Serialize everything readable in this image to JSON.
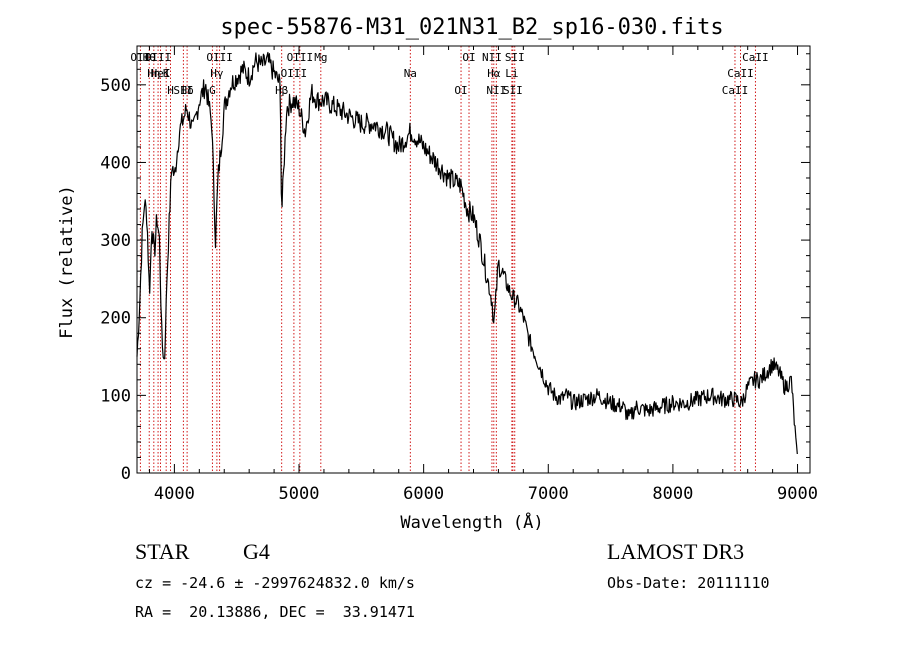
{
  "chart_data": {
    "type": "line",
    "title": "spec-55876-M31_021N31_B2_sp16-030.fits",
    "xlabel": "Wavelength (Å)",
    "ylabel": "Flux (relative)",
    "xlim": [
      3700,
      9100
    ],
    "ylim": [
      0,
      550
    ],
    "xticks": [
      4000,
      5000,
      6000,
      7000,
      8000,
      9000
    ],
    "yticks": [
      0,
      100,
      200,
      300,
      400,
      500
    ],
    "grid": false,
    "line_color": "#000000",
    "marker_color": "#cc0000",
    "series": [
      {
        "name": "flux",
        "x": [
          3700,
          3720,
          3740,
          3760,
          3780,
          3800,
          3820,
          3840,
          3860,
          3880,
          3900,
          3920,
          3940,
          3960,
          3980,
          4000,
          4040,
          4080,
          4100,
          4150,
          4200,
          4250,
          4300,
          4330,
          4350,
          4380,
          4400,
          4450,
          4500,
          4550,
          4600,
          4650,
          4700,
          4750,
          4800,
          4850,
          4860,
          4900,
          4950,
          5000,
          5050,
          5100,
          5150,
          5200,
          5300,
          5400,
          5500,
          5600,
          5700,
          5800,
          5900,
          6000,
          6100,
          6200,
          6300,
          6350,
          6400,
          6450,
          6500,
          6550,
          6563,
          6600,
          6650,
          6700,
          6750,
          6800,
          6850,
          6900,
          6950,
          7000,
          7050,
          7100,
          7150,
          7200,
          7300,
          7400,
          7500,
          7600,
          7650,
          7700,
          7800,
          7900,
          8000,
          8100,
          8200,
          8300,
          8400,
          8500,
          8550,
          8600,
          8650,
          8700,
          8750,
          8800,
          8850,
          8900,
          8950,
          9000
        ],
        "y": [
          150,
          210,
          300,
          350,
          330,
          230,
          320,
          280,
          330,
          300,
          170,
          140,
          250,
          330,
          400,
          380,
          440,
          460,
          470,
          440,
          480,
          500,
          450,
          300,
          380,
          430,
          470,
          500,
          510,
          520,
          510,
          530,
          525,
          530,
          515,
          500,
          330,
          470,
          480,
          470,
          440,
          490,
          480,
          480,
          470,
          460,
          450,
          450,
          440,
          420,
          440,
          420,
          400,
          380,
          370,
          340,
          330,
          300,
          260,
          220,
          190,
          270,
          250,
          230,
          220,
          200,
          170,
          150,
          130,
          110,
          100,
          95,
          100,
          90,
          95,
          100,
          90,
          85,
          70,
          85,
          80,
          85,
          90,
          90,
          95,
          100,
          95,
          95,
          90,
          110,
          120,
          120,
          130,
          140,
          130,
          110,
          120,
          10
        ]
      }
    ],
    "lines": [
      {
        "name": "Hθ",
        "x": 3798
      },
      {
        "name": "K",
        "x": 3934
      },
      {
        "name": "Hδ",
        "x": 4102
      },
      {
        "name": "OII",
        "x": 3727
      },
      {
        "name": "HeI",
        "x": 3889
      },
      {
        "name": "SII",
        "x": 4072
      },
      {
        "name": "OIII",
        "x": 3869
      },
      {
        "name": "Hη",
        "x": 3835
      },
      {
        "name": "H",
        "x": 3969
      },
      {
        "name": "OIII",
        "x": 4363
      },
      {
        "name": "Hγ",
        "x": 4341
      },
      {
        "name": "G",
        "x": 4305
      },
      {
        "name": "OIII",
        "x": 5007
      },
      {
        "name": "OIII",
        "x": 4959
      },
      {
        "name": "Hβ",
        "x": 4861
      },
      {
        "name": "Mg",
        "x": 5175
      },
      {
        "name": "Na",
        "x": 5893
      },
      {
        "name": "OI",
        "x": 6300
      },
      {
        "name": "OI",
        "x": 6364
      },
      {
        "name": "Hα",
        "x": 6563
      },
      {
        "name": "SII",
        "x": 6716
      },
      {
        "name": "NII",
        "x": 6548
      },
      {
        "name": "Li",
        "x": 6708
      },
      {
        "name": "NII",
        "x": 6583
      },
      {
        "name": "SII",
        "x": 6731
      },
      {
        "name": "CaII",
        "x": 8542
      },
      {
        "name": "CaII",
        "x": 8498
      },
      {
        "name": "CaII",
        "x": 8662
      }
    ]
  },
  "footer": {
    "object_class": "STAR",
    "subclass": "G4",
    "survey": "LAMOST DR3",
    "cz": "cz = -24.6 ± -2997624832.0 km/s",
    "obs_date": "Obs-Date: 20111110",
    "coords": "RA =  20.13886, DEC =  33.91471"
  }
}
